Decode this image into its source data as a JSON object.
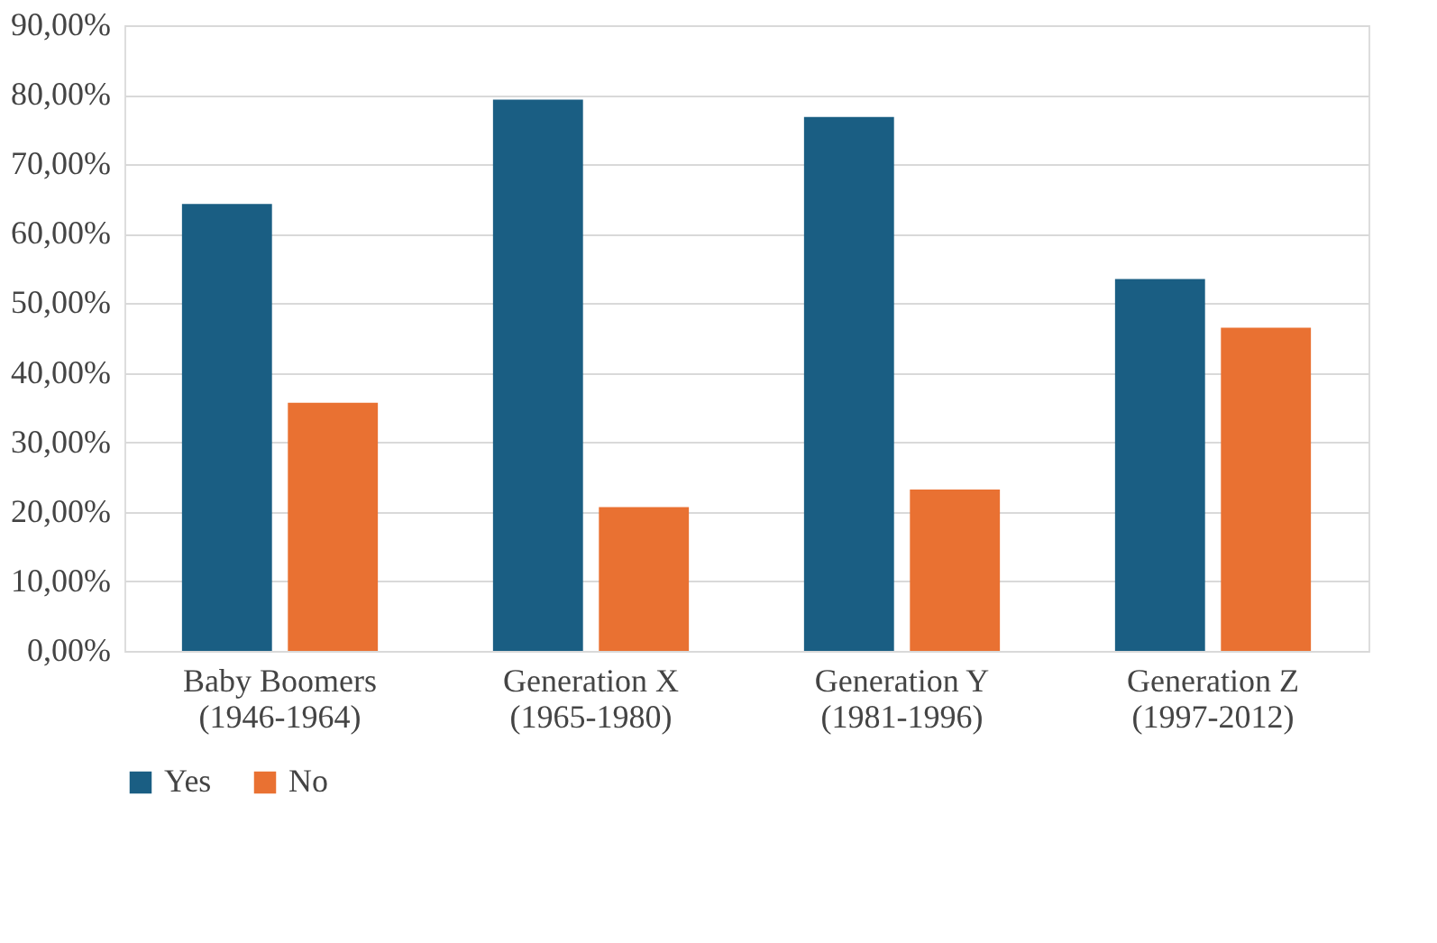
{
  "chart_data": {
    "type": "bar",
    "categories": [
      "Baby Boomers\n(1946-1964)",
      "Generation X\n(1965-1980)",
      "Generation Y\n(1981-1996)",
      "Generation Z\n(1997-2012)"
    ],
    "series": [
      {
        "name": "Yes",
        "color": "#1a5e83",
        "values": [
          64.3,
          79.3,
          76.8,
          53.5
        ]
      },
      {
        "name": "No",
        "color": "#e97132",
        "values": [
          35.7,
          20.7,
          23.2,
          46.5
        ]
      }
    ],
    "ylim": [
      0,
      90
    ],
    "yticks": [
      {
        "value": 0,
        "label": "0,00%"
      },
      {
        "value": 10,
        "label": "10,00%"
      },
      {
        "value": 20,
        "label": "20,00%"
      },
      {
        "value": 30,
        "label": "30,00%"
      },
      {
        "value": 40,
        "label": "40,00%"
      },
      {
        "value": 50,
        "label": "50,00%"
      },
      {
        "value": 60,
        "label": "60,00%"
      },
      {
        "value": 70,
        "label": "70,00%"
      },
      {
        "value": 80,
        "label": "80,00%"
      },
      {
        "value": 90,
        "label": "90,00%"
      }
    ],
    "grid": "y",
    "legend": "bottom"
  }
}
